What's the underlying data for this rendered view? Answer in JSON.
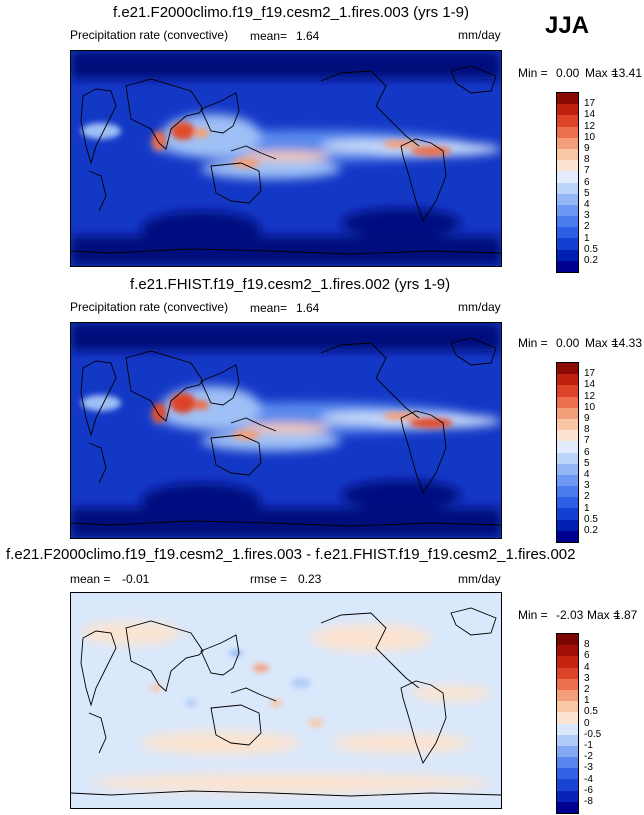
{
  "season": "JJA",
  "units_label": "mm/day",
  "panels": [
    {
      "id": "test",
      "title": "f.e21.F2000climo.f19_f19.cesm2_1.fires.003 (yrs 1-9)",
      "variable": "Precipitation rate (convective)",
      "stat1_label": "mean=",
      "stat1_value": "1.64",
      "min_label": "Min =",
      "min_value": "0.00",
      "max_label": "Max =",
      "max_value": "13.41",
      "palette": "abs"
    },
    {
      "id": "control",
      "title": "f.e21.FHIST.f19_f19.cesm2_1.fires.002 (yrs 1-9)",
      "variable": "Precipitation rate (convective)",
      "stat1_label": "mean=",
      "stat1_value": "1.64",
      "min_label": "Min =",
      "min_value": "0.00",
      "max_label": "Max =",
      "max_value": "14.33",
      "palette": "abs"
    },
    {
      "id": "diff",
      "title": "f.e21.F2000climo.f19_f19.cesm2_1.fires.003 - f.e21.FHIST.f19_f19.cesm2_1.fires.002",
      "stat1_label": "mean =",
      "stat1_value": "-0.01",
      "stat2_label": "rmse =",
      "stat2_value": "0.23",
      "min_label": "Min =",
      "min_value": "-2.03",
      "max_label": "Max =",
      "max_value": "1.87",
      "palette": "diff"
    }
  ],
  "colorbars": {
    "abs": {
      "levels": [
        "0.2",
        "0.5",
        "1",
        "2",
        "3",
        "4",
        "5",
        "6",
        "7",
        "8",
        "9",
        "10",
        "12",
        "14",
        "17"
      ],
      "colors": [
        "#00008e",
        "#0020b4",
        "#1440d2",
        "#2c5ee6",
        "#4a7cef",
        "#6d98f3",
        "#93b6f7",
        "#bcd4fa",
        "#e2ecfc",
        "#fbe4d2",
        "#f9c6a6",
        "#f49f7a",
        "#ec704d",
        "#dd4327",
        "#c0200f",
        "#8c0a04"
      ]
    },
    "diff": {
      "levels": [
        "-8",
        "-6",
        "-4",
        "-3",
        "-2",
        "-1",
        "-0.5",
        "0",
        "0.5",
        "1",
        "2",
        "3",
        "4",
        "6",
        "8"
      ],
      "colors": [
        "#00008e",
        "#0a22b8",
        "#1a44d4",
        "#3462e6",
        "#5886ee",
        "#82a8f4",
        "#b0cbf8",
        "#dae8fb",
        "#fbe4d2",
        "#f9c6a6",
        "#f49f7a",
        "#ec704d",
        "#dd4327",
        "#c7240f",
        "#a00e05",
        "#7a0502"
      ]
    }
  },
  "chart_data": [
    {
      "type": "heatmap",
      "title": "f.e21.F2000climo.f19_f19.cesm2_1.fires.003 (yrs 1-9)",
      "variable": "Precipitation rate (convective)",
      "units": "mm/day",
      "season": "JJA",
      "mean": 1.64,
      "min": 0.0,
      "max": 13.41,
      "contour_levels": [
        0.2,
        0.5,
        1,
        2,
        3,
        4,
        5,
        6,
        7,
        8,
        9,
        10,
        12,
        14,
        17
      ]
    },
    {
      "type": "heatmap",
      "title": "f.e21.FHIST.f19_f19.cesm2_1.fires.002 (yrs 1-9)",
      "variable": "Precipitation rate (convective)",
      "units": "mm/day",
      "season": "JJA",
      "mean": 1.64,
      "min": 0.0,
      "max": 14.33,
      "contour_levels": [
        0.2,
        0.5,
        1,
        2,
        3,
        4,
        5,
        6,
        7,
        8,
        9,
        10,
        12,
        14,
        17
      ]
    },
    {
      "type": "heatmap",
      "title": "f.e21.F2000climo.f19_f19.cesm2_1.fires.003 - f.e21.FHIST.f19_f19.cesm2_1.fires.002",
      "units": "mm/day",
      "season": "JJA",
      "mean": -0.01,
      "rmse": 0.23,
      "min": -2.03,
      "max": 1.87,
      "contour_levels": [
        -8,
        -6,
        -4,
        -3,
        -2,
        -1,
        -0.5,
        0,
        0.5,
        1,
        2,
        3,
        4,
        6,
        8
      ]
    }
  ]
}
